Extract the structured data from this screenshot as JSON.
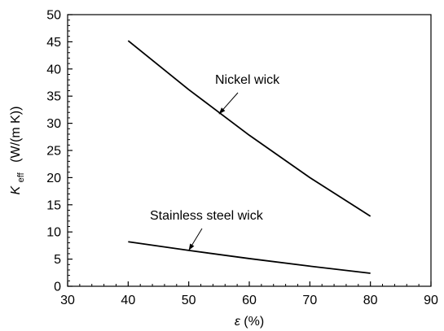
{
  "chart_data": {
    "type": "line",
    "title": "",
    "xlabel": {
      "prefix": "",
      "symbol": "ε",
      "unit": "(%)"
    },
    "ylabel": {
      "symbol": "K",
      "subscript": "eff",
      "unit": "(W/(m K))"
    },
    "xlim": [
      30,
      90
    ],
    "ylim": [
      0,
      50
    ],
    "xticks": [
      30,
      40,
      50,
      60,
      70,
      80,
      90
    ],
    "yticks": [
      0,
      5,
      10,
      15,
      20,
      25,
      30,
      35,
      40,
      45,
      50
    ],
    "grid": false,
    "series": [
      {
        "name": "Nickel wick",
        "x": [
          40,
          50,
          60,
          70,
          80
        ],
        "y": [
          45.2,
          36.2,
          27.8,
          20.0,
          12.9
        ]
      },
      {
        "name": "Stainless steel wick",
        "x": [
          40,
          50,
          60,
          70,
          80
        ],
        "y": [
          8.2,
          6.6,
          5.1,
          3.7,
          2.4
        ]
      }
    ],
    "annotations": [
      {
        "text": "Nickel wick",
        "series": "Nickel wick",
        "point_x": 55,
        "point_y": 31.7
      },
      {
        "text": "Stainless steel wick",
        "series": "Stainless steel wick",
        "point_x": 50,
        "point_y": 6.6
      }
    ]
  }
}
